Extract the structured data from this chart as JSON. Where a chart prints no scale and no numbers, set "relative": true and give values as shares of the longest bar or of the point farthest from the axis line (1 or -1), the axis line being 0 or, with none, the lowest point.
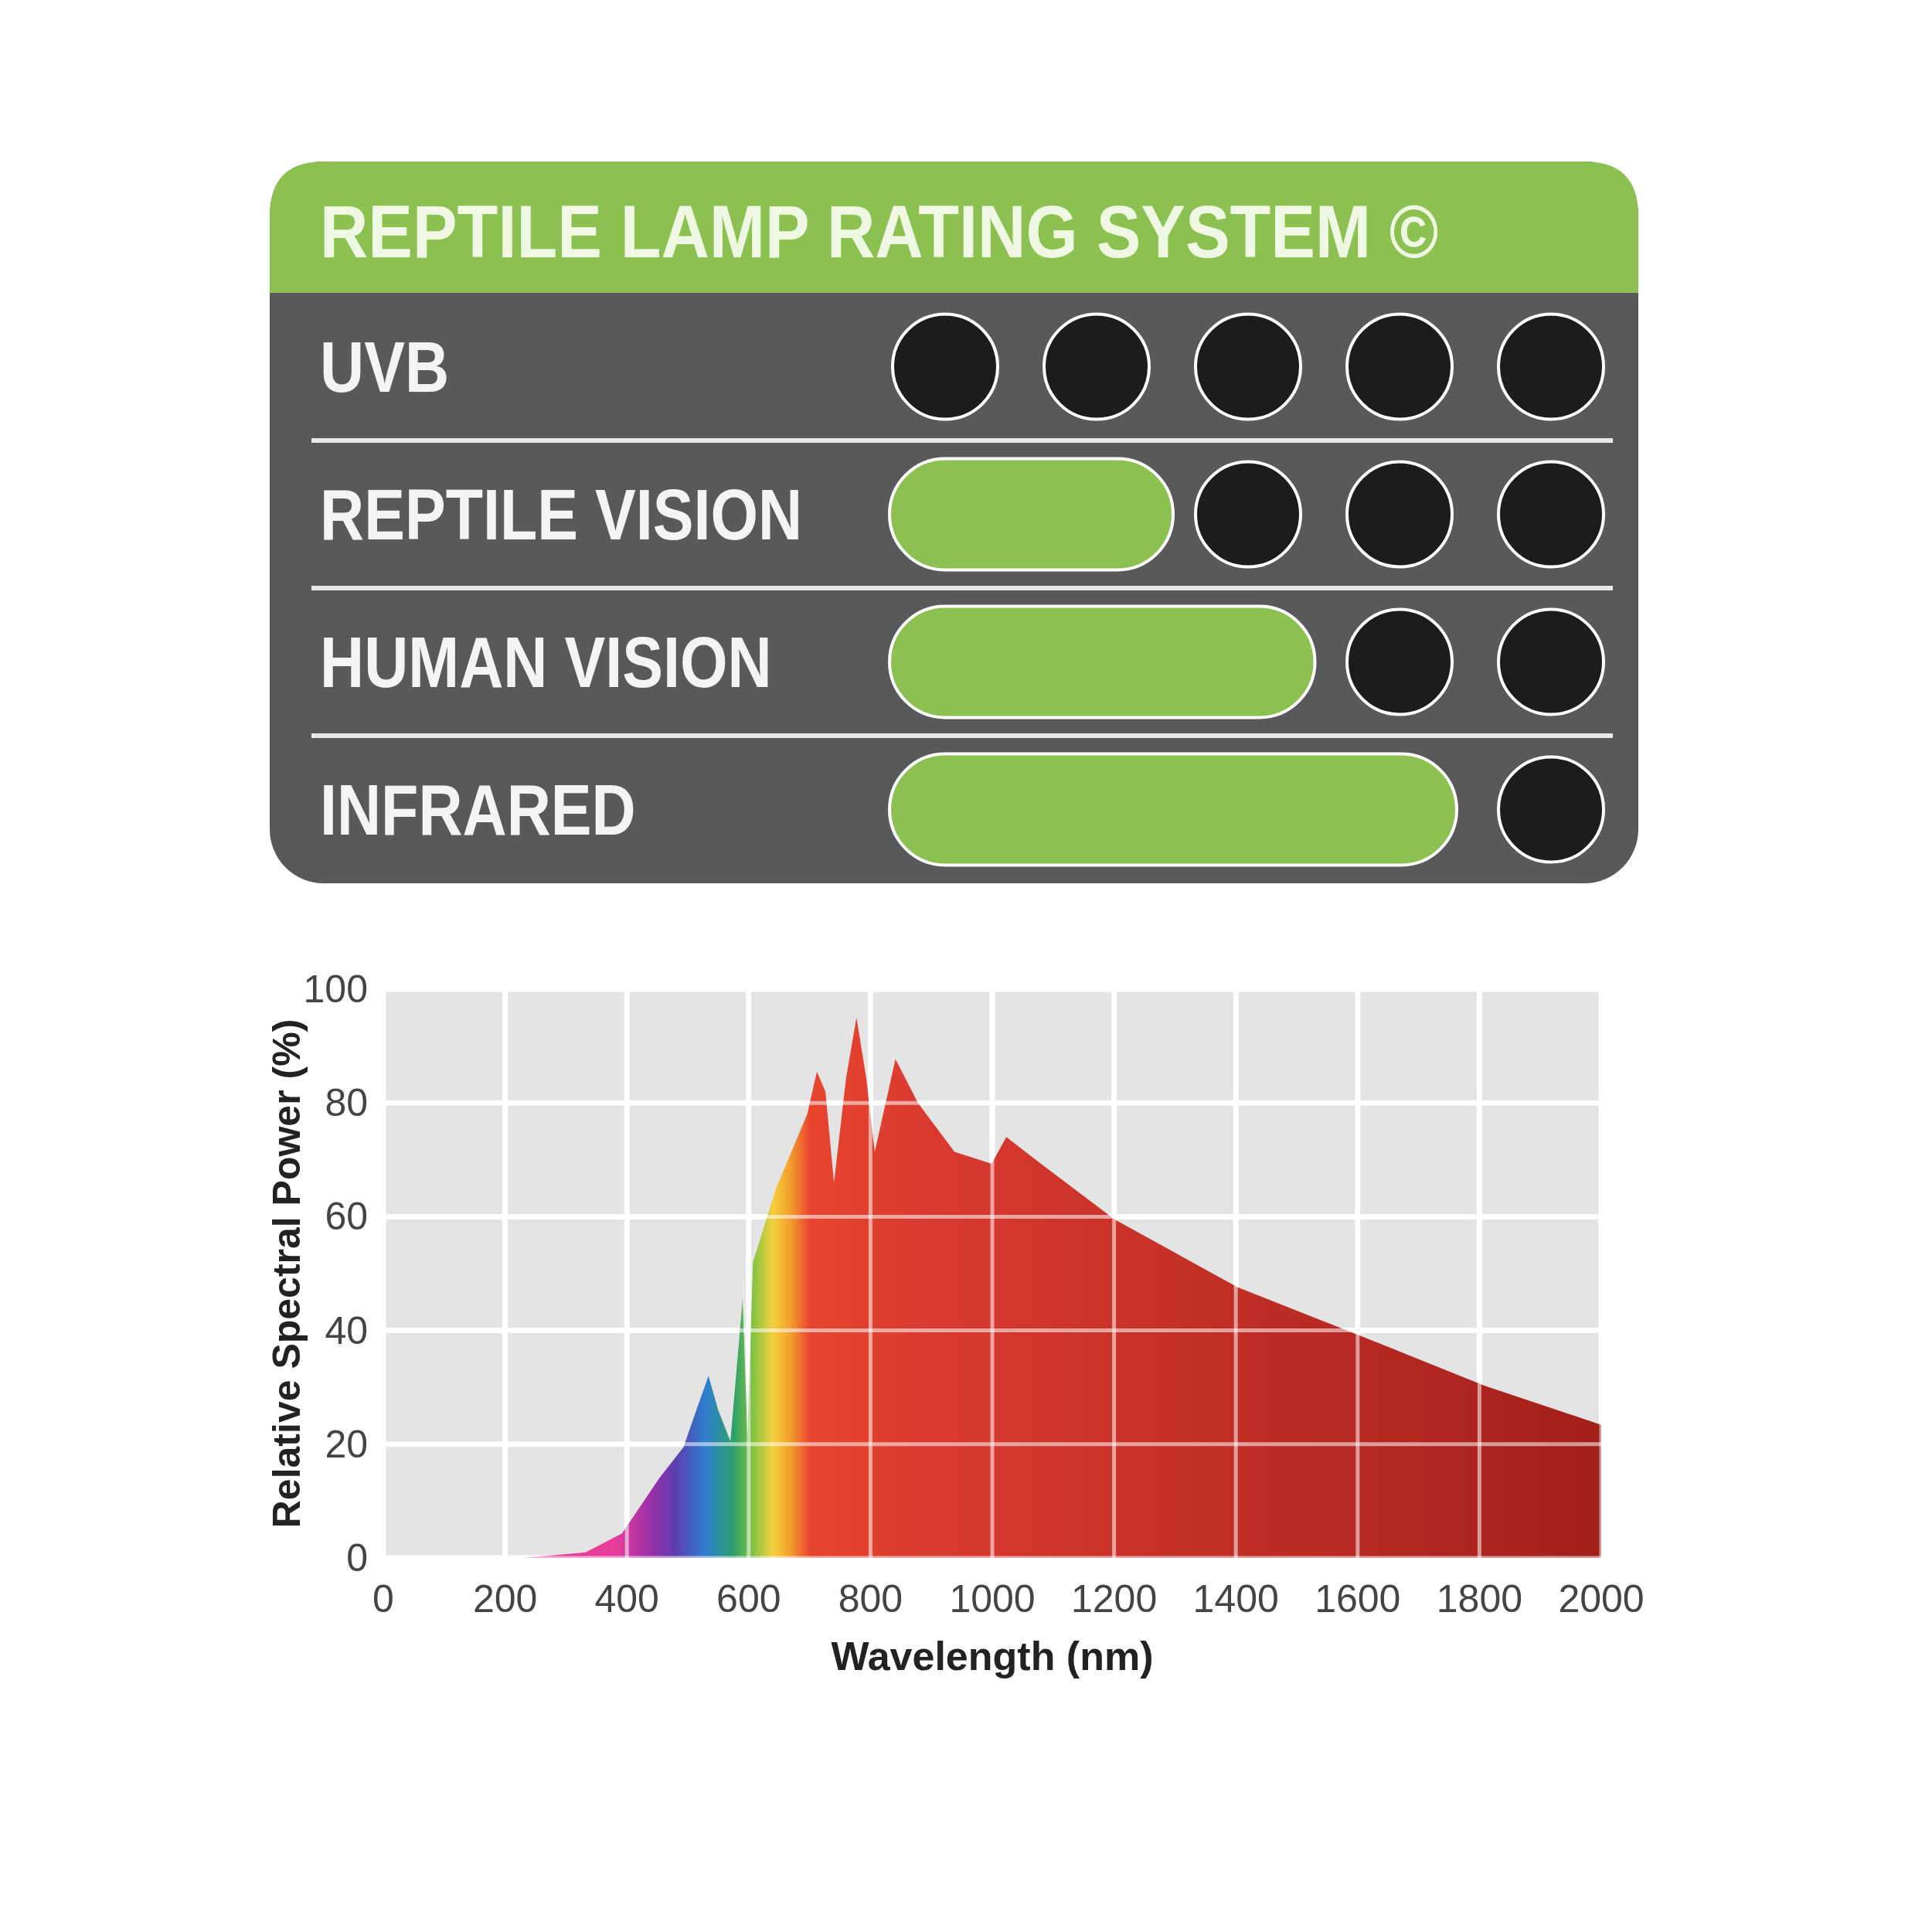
{
  "chart_data": [
    {
      "type": "bar",
      "orientation": "horizontal",
      "relative": true,
      "title": "REPTILE LAMP RATING SYSTEM ©",
      "categories": [
        "UVB",
        "REPTILE VISION",
        "HUMAN VISION",
        "INFRARED"
      ],
      "values": [
        0,
        0.5,
        0.75,
        1
      ],
      "color": "#8cc152"
    },
    {
      "type": "area",
      "xlabel": "Wavelength (nm)",
      "ylabel": "Relative Spectral Power (%)",
      "color": "#a31f1a",
      "grid": true,
      "x": [
        230,
        332,
        392,
        453,
        493,
        514,
        534,
        550,
        570,
        590,
        598,
        607,
        645,
        696,
        712,
        726,
        740,
        760,
        777,
        793,
        807,
        841,
        878,
        938,
        999,
        1023,
        1080,
        1201,
        1403,
        1606,
        1808,
        2000
      ],
      "values": [
        0,
        1,
        4.3,
        14,
        19.5,
        26,
        32,
        26,
        20.5,
        45.5,
        21.6,
        52,
        65,
        78,
        85.5,
        82,
        66,
        84.4,
        95,
        84.4,
        71.4,
        87.7,
        80,
        71.4,
        69.3,
        74,
        69.3,
        59.5,
        47.6,
        39,
        30.3,
        23.4
      ],
      "xlim": [
        0,
        2000
      ],
      "xticks": [
        0,
        200,
        400,
        600,
        800,
        1000,
        1200,
        1400,
        1600,
        1800,
        2000
      ],
      "ylim": [
        0,
        100
      ],
      "yticks": [
        0,
        20,
        40,
        60,
        80,
        100
      ]
    }
  ]
}
